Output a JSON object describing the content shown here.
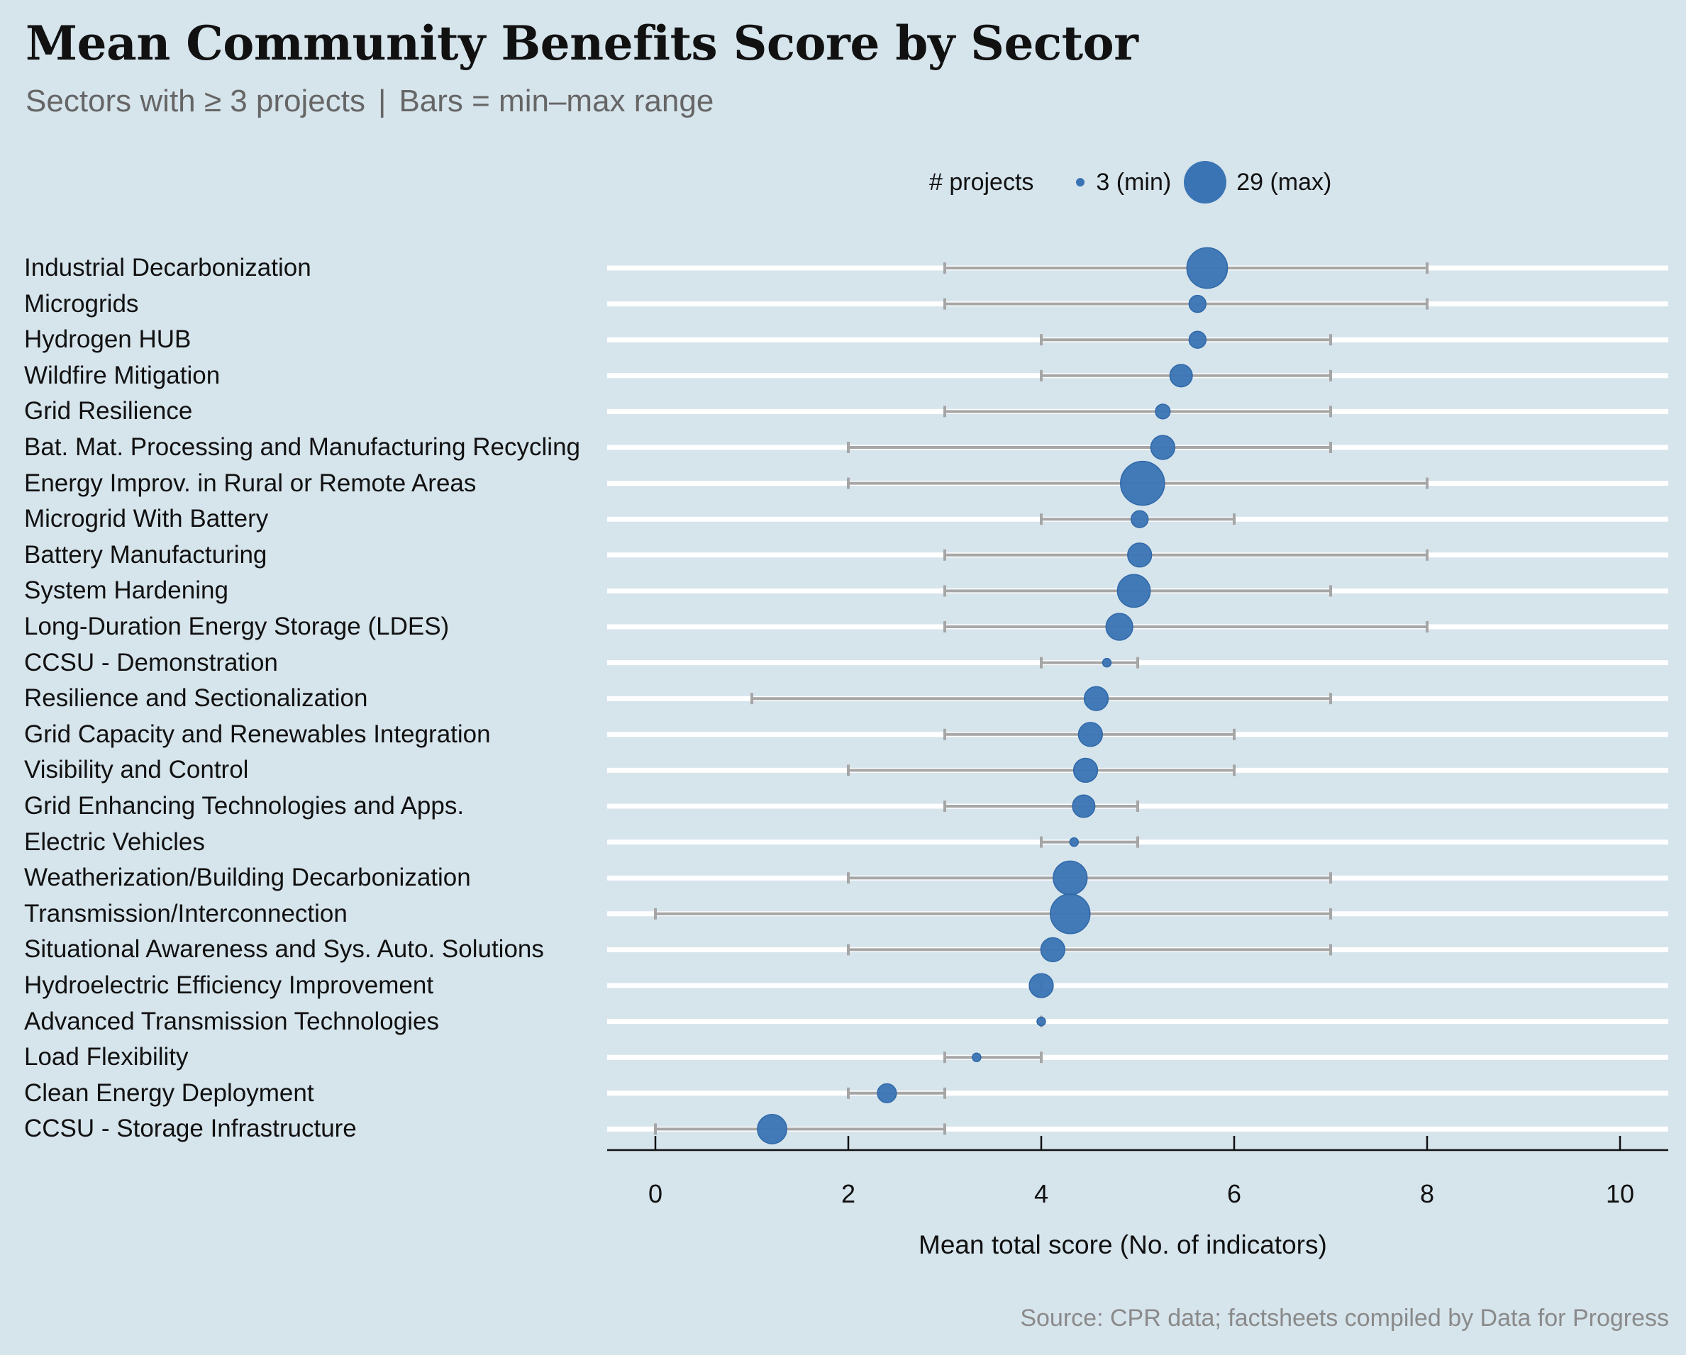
{
  "title": "Mean Community Benefits Score by Sector",
  "subtitle": {
    "left": "Sectors with ≥ 3 projects",
    "separator": "|",
    "right": "Bars = min–max range"
  },
  "legend": {
    "title": "# projects",
    "min_label": "3 (min)",
    "max_label": "29 (max)"
  },
  "source": "Source: CPR data; factsheets compiled by Data for Progress",
  "colors": {
    "background": "#d6e4ec",
    "dot": "#3a74b4",
    "range_bar": "#a6a6a6",
    "gridline": "#ffffff",
    "axis": "#111111"
  },
  "chart_data": {
    "type": "scatter",
    "title": "Mean Community Benefits Score by Sector",
    "subtitle": "Sectors with ≥ 3 projects | Bars = min–max range",
    "xlabel": "Mean total score (No. of indicators)",
    "ylabel": "",
    "xlim": [
      -0.5,
      10.5
    ],
    "xticks": [
      0,
      2,
      4,
      6,
      8,
      10
    ],
    "xtick_labels": [
      "0",
      "2",
      "4",
      "6",
      "8",
      "10"
    ],
    "grid": "horizontal",
    "legend_position": "top-right",
    "size_encoding": {
      "field": "projects",
      "min": 3,
      "max": 29
    },
    "categories": [
      "Industrial Decarbonization",
      "Microgrids",
      "Hydrogen HUB",
      "Wildfire Mitigation",
      "Grid Resilience",
      "Bat. Mat. Processing and Manufacturing Recycling",
      "Energy Improv. in Rural or Remote Areas",
      "Microgrid With Battery",
      "Battery Manufacturing",
      "System Hardening",
      "Long-Duration Energy Storage (LDES)",
      "CCSU - Demonstration",
      "Resilience and Sectionalization",
      "Grid Capacity and Renewables Integration",
      "Visibility and Control",
      "Grid Enhancing Technologies and Apps.",
      "Electric Vehicles",
      "Weatherization/Building Decarbonization",
      "Transmission/Interconnection",
      "Situational Awareness and Sys. Auto. Solutions",
      "Hydroelectric Efficiency Improvement",
      "Advanced Transmission Technologies",
      "Load Flexibility",
      "Clean Energy Deployment",
      "CCSU - Storage Infrastructure"
    ],
    "series": [
      {
        "name": "mean",
        "values": [
          5.72,
          5.62,
          5.62,
          5.45,
          5.26,
          5.26,
          5.05,
          5.02,
          5.02,
          4.96,
          4.81,
          4.68,
          4.57,
          4.51,
          4.46,
          4.44,
          4.34,
          4.3,
          4.3,
          4.12,
          4.0,
          4.0,
          3.33,
          2.4,
          1.21
        ]
      },
      {
        "name": "min",
        "values": [
          3,
          3,
          4,
          4,
          3,
          2,
          2,
          4,
          3,
          3,
          3,
          4,
          1,
          3,
          2,
          3,
          4,
          2,
          0,
          2,
          4,
          4,
          3,
          2,
          0
        ]
      },
      {
        "name": "max",
        "values": [
          8,
          8,
          7,
          7,
          7,
          7,
          8,
          6,
          8,
          7,
          8,
          5,
          7,
          6,
          6,
          5,
          5,
          7,
          7,
          7,
          4,
          4,
          4,
          3,
          3
        ]
      },
      {
        "name": "projects",
        "values": [
          25,
          6,
          6,
          9,
          5,
          10,
          29,
          6,
          10,
          17,
          12,
          3,
          10,
          10,
          10,
          9,
          3,
          18,
          24,
          10,
          10,
          3,
          3,
          7,
          14
        ]
      }
    ]
  }
}
